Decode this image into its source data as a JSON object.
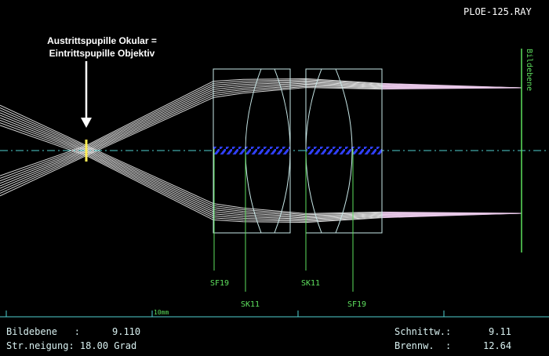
{
  "header": {
    "file": "PLOE-125.RAY"
  },
  "annotation": {
    "lines": [
      "Austrittspupille Okular =",
      "Eintrittspupille Objektiv"
    ]
  },
  "image_plane_label": "Bildebene",
  "glass_labels": [
    "SF19",
    "SK11",
    "SK11",
    "SF19"
  ],
  "scale_label": "10mm",
  "status": {
    "left": [
      {
        "label": "Bildebene   :",
        "value": "9.110"
      },
      {
        "label": "Str.neigung: 18.00 Grad"
      }
    ],
    "right": [
      {
        "label": "Schnittw.:",
        "value": "9.11"
      },
      {
        "label": "Brennw.  :",
        "value": "12.64"
      }
    ]
  }
}
